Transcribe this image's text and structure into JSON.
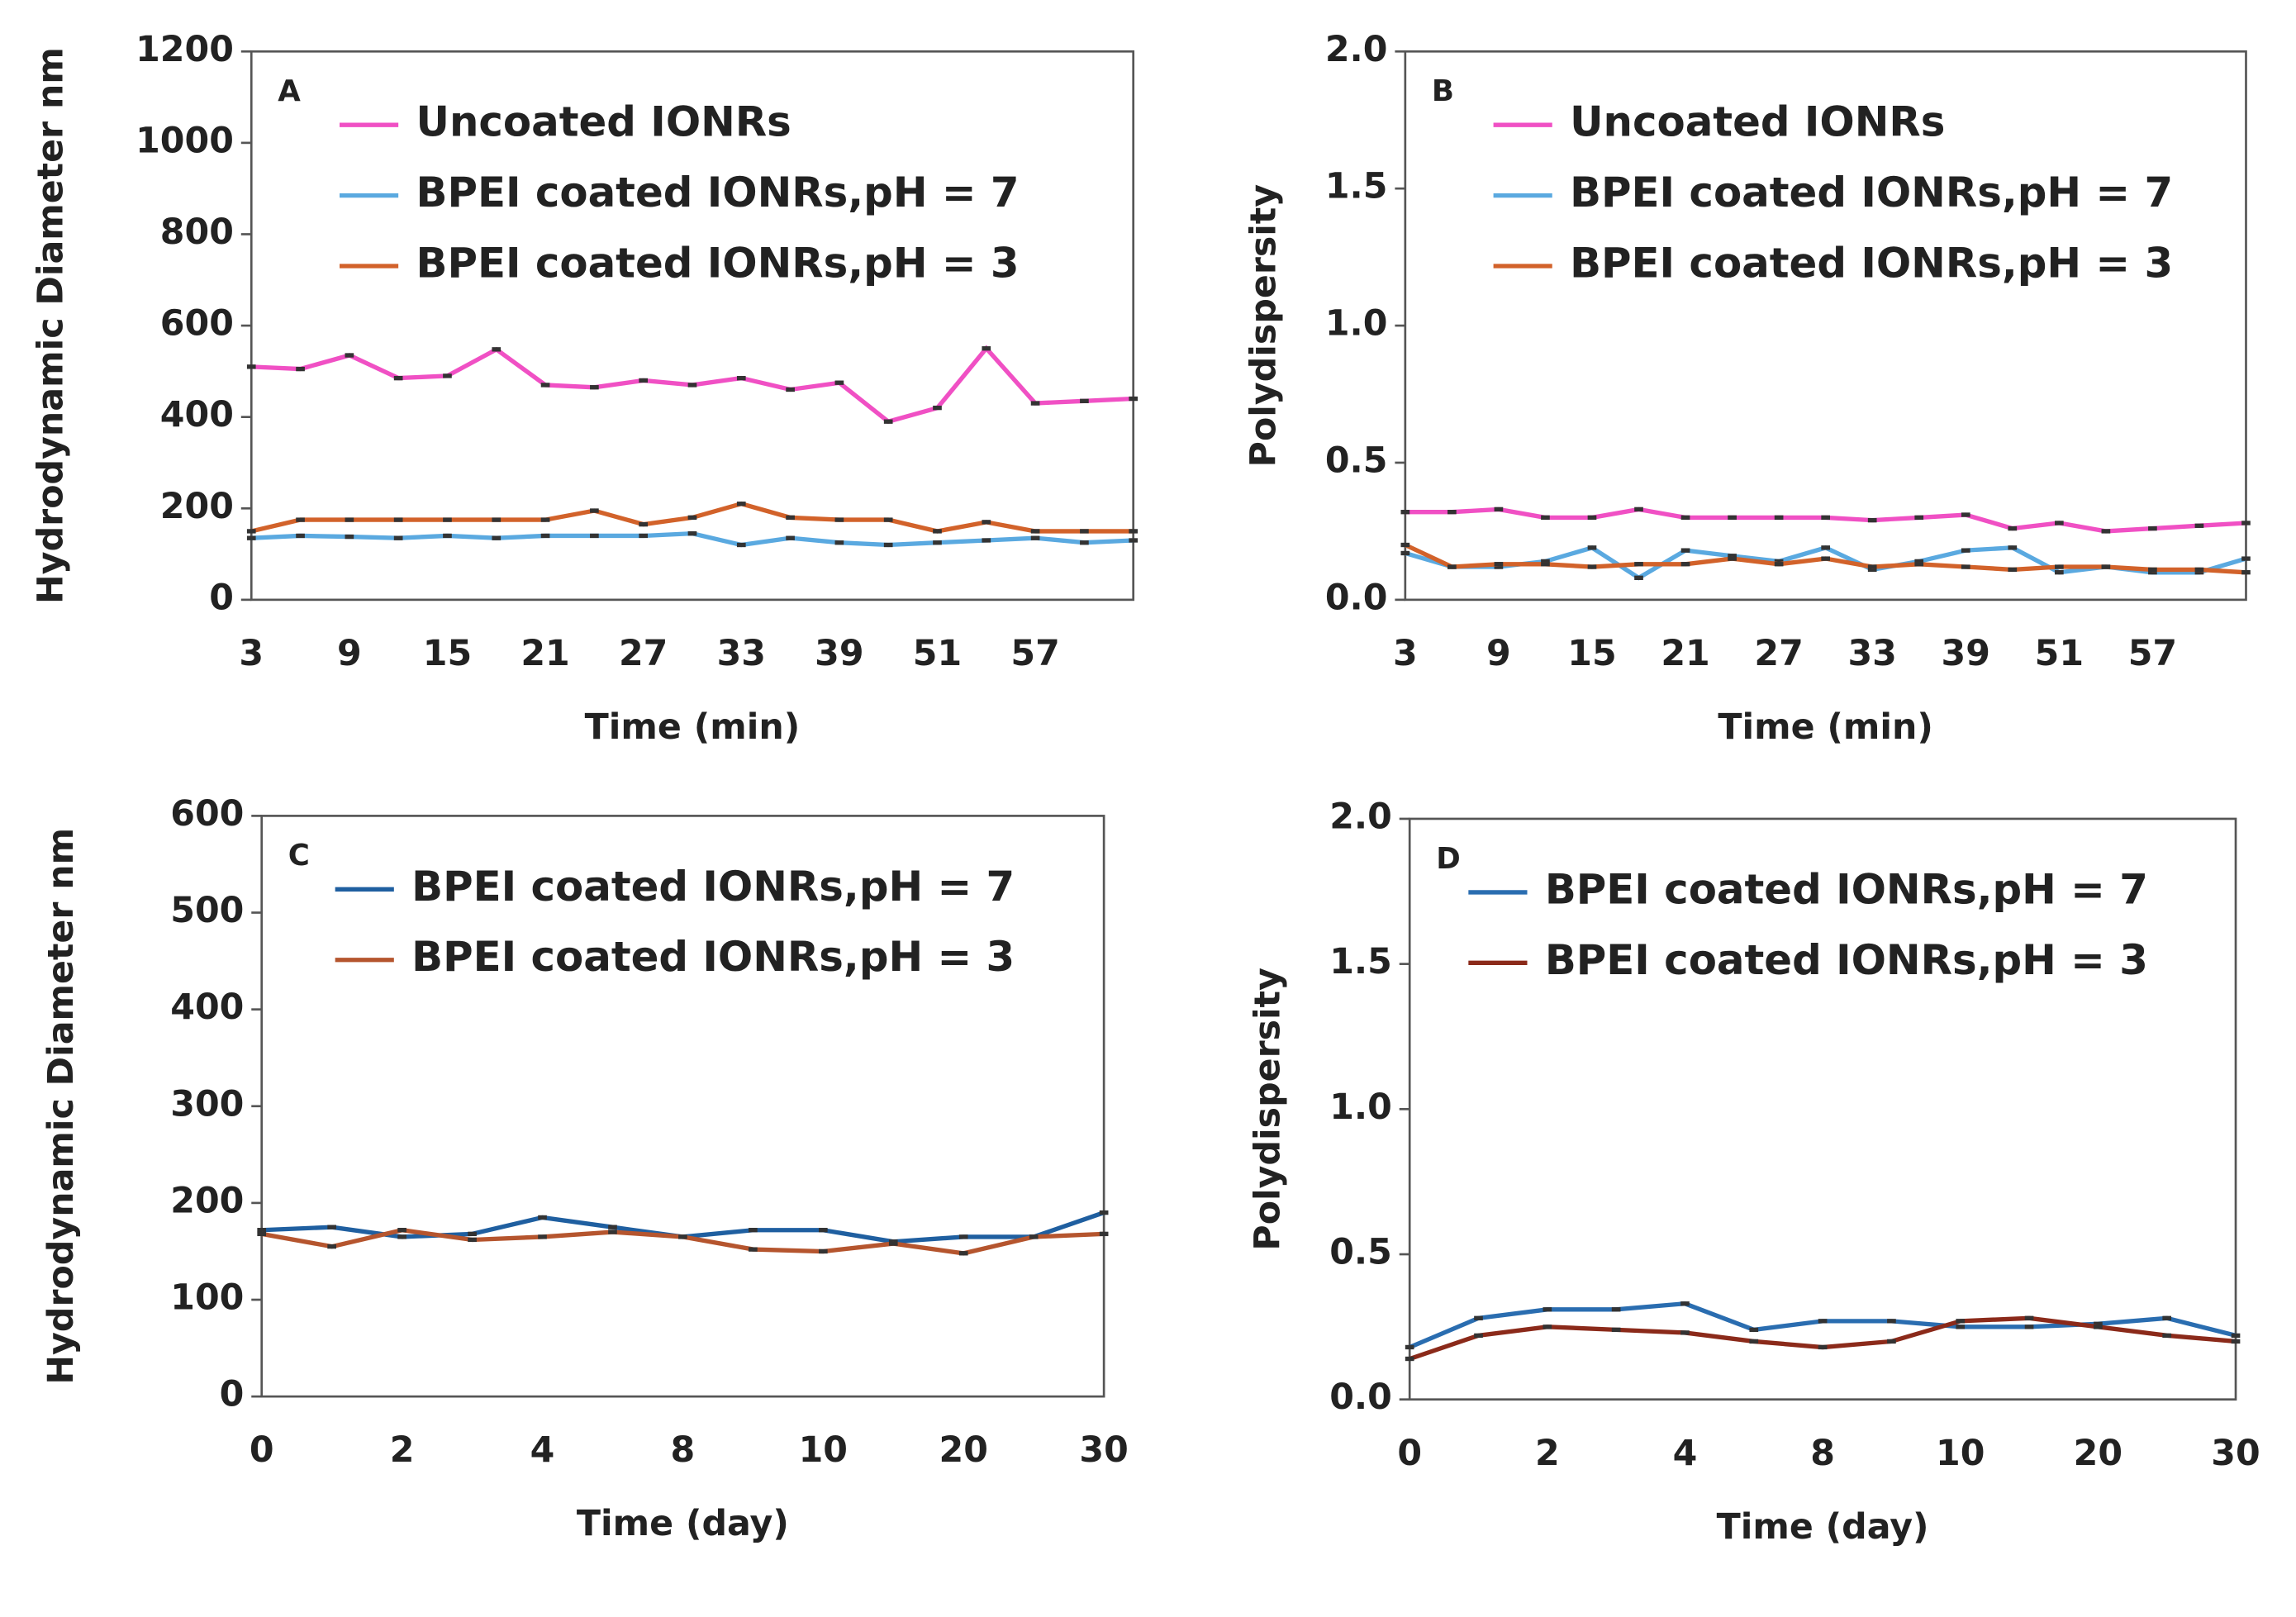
{
  "chart_data": [
    {
      "type": "line",
      "label": "A",
      "xlabel": "Time (min)",
      "ylabel": "Hydrodynamic Diameter nm",
      "categories": [
        "3",
        null,
        "9",
        null,
        "15",
        null,
        "21",
        null,
        "27",
        null,
        "33",
        null,
        "39",
        null,
        "51",
        null,
        "57",
        null,
        null
      ],
      "ylim": [
        0,
        1200
      ],
      "yticks": [
        0,
        200,
        400,
        600,
        800,
        1000,
        1200
      ],
      "series": [
        {
          "name": "Uncoated IONRs",
          "color": "#f050c4",
          "values": [
            510,
            505,
            535,
            485,
            490,
            548,
            470,
            465,
            480,
            470,
            485,
            460,
            475,
            390,
            420,
            550,
            430,
            435,
            440
          ]
        },
        {
          "name": "BPEI coated IONRs,pH = 7",
          "color": "#5aa9e0",
          "values": [
            135,
            140,
            138,
            135,
            140,
            135,
            140,
            140,
            140,
            145,
            120,
            135,
            125,
            120,
            125,
            130,
            135,
            125,
            130
          ]
        },
        {
          "name": "BPEI coated IONRs,pH = 3",
          "color": "#d2622a",
          "values": [
            150,
            175,
            175,
            175,
            175,
            175,
            175,
            195,
            165,
            180,
            210,
            180,
            175,
            175,
            150,
            170,
            150,
            150,
            150
          ]
        }
      ]
    },
    {
      "type": "line",
      "label": "B",
      "xlabel": "Time (min)",
      "ylabel": "Polydispersity",
      "categories": [
        "3",
        null,
        "9",
        null,
        "15",
        null,
        "21",
        null,
        "27",
        null,
        "33",
        null,
        "39",
        null,
        "51",
        null,
        "57",
        null,
        null
      ],
      "ylim": [
        0,
        2
      ],
      "yticks": [
        {
          "value": 0,
          "label": "0.0"
        },
        0.5,
        {
          "value": 1,
          "label": "1.0"
        },
        1.5,
        {
          "value": 2,
          "label": "2.0"
        }
      ],
      "series": [
        {
          "name": "Uncoated IONRs",
          "color": "#f050c4",
          "values": [
            0.32,
            0.32,
            0.33,
            0.3,
            0.3,
            0.33,
            0.3,
            0.3,
            0.3,
            0.3,
            0.29,
            0.3,
            0.31,
            0.26,
            0.28,
            0.25,
            0.26,
            0.27,
            0.28
          ]
        },
        {
          "name": "BPEI coated IONRs,pH = 7",
          "color": "#5aa9e0",
          "values": [
            0.17,
            0.12,
            0.12,
            0.14,
            0.19,
            0.08,
            0.18,
            0.16,
            0.14,
            0.19,
            0.11,
            0.14,
            0.18,
            0.19,
            0.1,
            0.12,
            0.1,
            0.1,
            0.15
          ]
        },
        {
          "name": "BPEI coated IONRs,pH = 3",
          "color": "#d2622a",
          "values": [
            0.2,
            0.12,
            0.13,
            0.13,
            0.12,
            0.13,
            0.13,
            0.15,
            0.13,
            0.15,
            0.12,
            0.13,
            0.12,
            0.11,
            0.12,
            0.12,
            0.11,
            0.11,
            0.1
          ]
        }
      ]
    },
    {
      "type": "line",
      "label": "C",
      "xlabel": "Time (day)",
      "ylabel": "Hydrodynamic Diameter nm",
      "categories": [
        "0",
        null,
        "2",
        null,
        "4",
        null,
        "8",
        null,
        "10",
        null,
        "20",
        null,
        "30"
      ],
      "ylim": [
        0,
        600
      ],
      "yticks": [
        0,
        100,
        200,
        300,
        400,
        500,
        600
      ],
      "series": [
        {
          "name": "BPEI coated IONRs,pH = 7",
          "color": "#1f5fa0",
          "values": [
            172,
            175,
            165,
            168,
            185,
            175,
            165,
            172,
            172,
            160,
            165,
            165,
            190
          ]
        },
        {
          "name": "BPEI coated IONRs,pH = 3",
          "color": "#b5552e",
          "values": [
            168,
            155,
            172,
            162,
            165,
            170,
            165,
            152,
            150,
            158,
            148,
            165,
            168
          ]
        }
      ]
    },
    {
      "type": "line",
      "label": "D",
      "xlabel": "Time (day)",
      "ylabel": "Polydispersity",
      "categories": [
        "0",
        null,
        "2",
        null,
        "4",
        null,
        "8",
        null,
        "10",
        null,
        "20",
        null,
        "30"
      ],
      "ylim": [
        0,
        2
      ],
      "yticks": [
        {
          "value": 0,
          "label": "0.0"
        },
        0.5,
        {
          "value": 1,
          "label": "1.0"
        },
        1.5,
        {
          "value": 2,
          "label": "2.0"
        }
      ],
      "series": [
        {
          "name": "BPEI coated IONRs,pH = 7",
          "color": "#2a6db0",
          "values": [
            0.18,
            0.28,
            0.31,
            0.31,
            0.33,
            0.24,
            0.27,
            0.27,
            0.25,
            0.25,
            0.26,
            0.28,
            0.22
          ]
        },
        {
          "name": "BPEI coated IONRs,pH = 3",
          "color": "#8b2a1a",
          "values": [
            0.14,
            0.22,
            0.25,
            0.24,
            0.23,
            0.2,
            0.18,
            0.2,
            0.27,
            0.28,
            0.25,
            0.22,
            0.2
          ]
        }
      ]
    }
  ]
}
